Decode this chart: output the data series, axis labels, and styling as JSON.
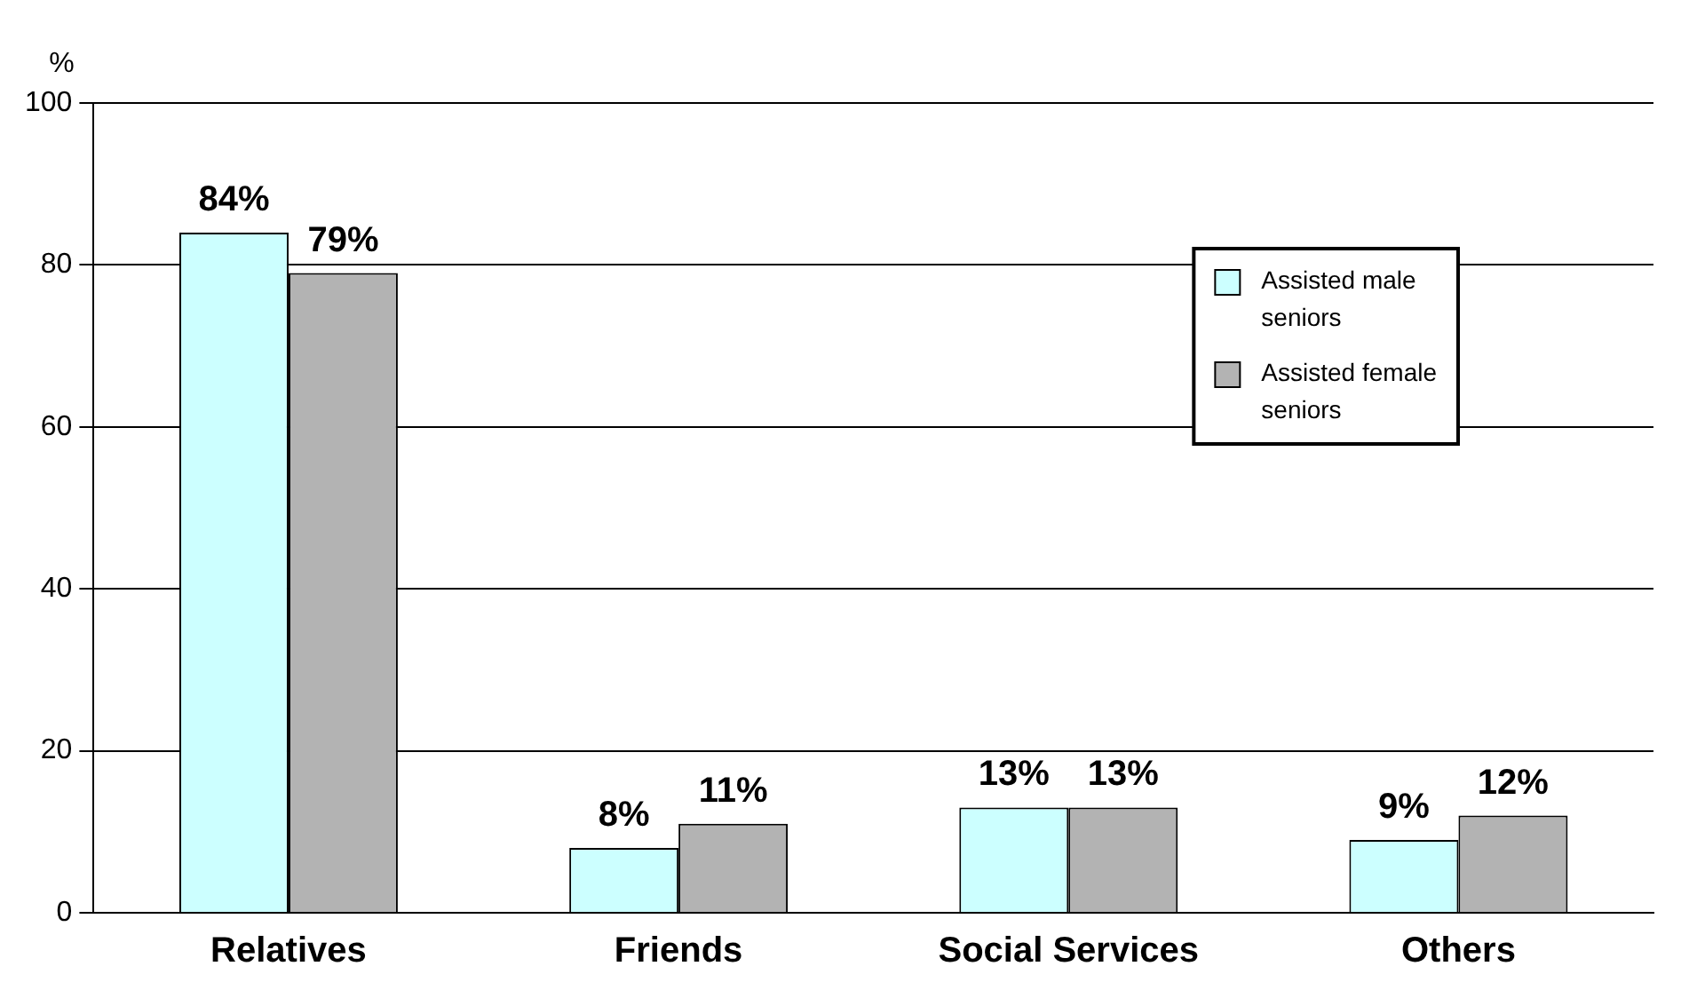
{
  "chart_data": {
    "type": "bar",
    "categories": [
      "Relatives",
      "Friends",
      "Social Services",
      "Others"
    ],
    "series": [
      {
        "name": "Assisted male seniors",
        "color": "#ccffff",
        "values": [
          84,
          8,
          13,
          9
        ],
        "value_labels": [
          "84%",
          "8%",
          "13%",
          "9%"
        ]
      },
      {
        "name": "Assisted female seniors",
        "color": "#b3b3b3",
        "values": [
          79,
          11,
          13,
          12
        ],
        "value_labels": [
          "79%",
          "11%",
          "13%",
          "12%"
        ]
      }
    ],
    "ylabel": "%",
    "ylim": [
      0,
      100
    ],
    "yticks": [
      0,
      20,
      40,
      60,
      80,
      100
    ],
    "grid": "y",
    "legend": "top right"
  }
}
